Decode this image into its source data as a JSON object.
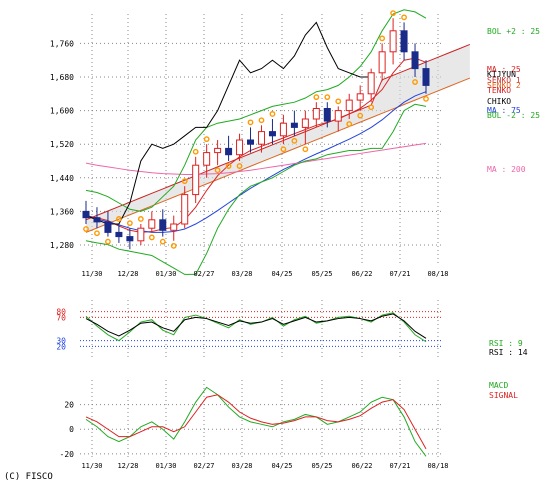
{
  "copyright": "(C) FISCO",
  "chart_data": [
    {
      "type": "candlestick",
      "panel": "price",
      "x_tick_labels": [
        "11/30",
        "12/28",
        "01/30",
        "02/27",
        "03/28",
        "04/25",
        "05/25",
        "06/22",
        "07/21",
        "08/18"
      ],
      "y_tick_labels": [
        "1,760",
        "1,680",
        "1,600",
        "1,520",
        "1,440",
        "1,360",
        "1,280"
      ],
      "ylim": [
        1230,
        1830
      ],
      "grid": true,
      "legend": [
        {
          "label": "BOL +2 : 25",
          "color": "#22aa22"
        },
        {
          "label": "MA : 25",
          "color": "#dd2222"
        },
        {
          "label": "KIJYUN",
          "color": "#000000"
        },
        {
          "label": "SENKO 1",
          "color": "#cc3333"
        },
        {
          "label": "SENKO 2",
          "color": "#dd6622"
        },
        {
          "label": "TENKO",
          "color": "#dd2222"
        },
        {
          "label": "CHIKO",
          "color": "#000000"
        },
        {
          "label": "MA : 75",
          "color": "#2244dd"
        },
        {
          "label": "BOL -2 : 25",
          "color": "#22aa22"
        },
        {
          "label": "MA : 200",
          "color": "#ee66aa"
        },
        {
          "label": "PSAR",
          "color": "#ff9900"
        }
      ],
      "colors": {
        "up": "#dd2222",
        "down": "#1a2a88",
        "bollinger": "#22aa22",
        "ma25": "#dd2222",
        "ma75": "#2244dd",
        "ma200": "#ee66aa",
        "chiko": "#000000",
        "psar": "#ff9900",
        "cloud_line": "#cc2222"
      },
      "ohlc_weekly": [
        [
          1360,
          1385,
          1330,
          1345
        ],
        [
          1345,
          1370,
          1320,
          1335
        ],
        [
          1335,
          1360,
          1300,
          1310
        ],
        [
          1310,
          1330,
          1285,
          1300
        ],
        [
          1300,
          1320,
          1270,
          1290
        ],
        [
          1290,
          1330,
          1280,
          1320
        ],
        [
          1320,
          1360,
          1310,
          1340
        ],
        [
          1340,
          1365,
          1300,
          1315
        ],
        [
          1315,
          1350,
          1290,
          1330
        ],
        [
          1330,
          1420,
          1320,
          1400
        ],
        [
          1400,
          1490,
          1380,
          1470
        ],
        [
          1470,
          1520,
          1440,
          1500
        ],
        [
          1500,
          1530,
          1470,
          1510
        ],
        [
          1510,
          1540,
          1480,
          1495
        ],
        [
          1495,
          1545,
          1480,
          1530
        ],
        [
          1530,
          1560,
          1500,
          1520
        ],
        [
          1520,
          1565,
          1500,
          1550
        ],
        [
          1550,
          1580,
          1520,
          1540
        ],
        [
          1540,
          1590,
          1520,
          1570
        ],
        [
          1570,
          1600,
          1540,
          1560
        ],
        [
          1560,
          1600,
          1520,
          1580
        ],
        [
          1580,
          1620,
          1560,
          1605
        ],
        [
          1605,
          1620,
          1560,
          1575
        ],
        [
          1575,
          1610,
          1550,
          1600
        ],
        [
          1600,
          1640,
          1580,
          1625
        ],
        [
          1625,
          1660,
          1600,
          1640
        ],
        [
          1640,
          1700,
          1620,
          1690
        ],
        [
          1690,
          1760,
          1670,
          1740
        ],
        [
          1740,
          1820,
          1710,
          1790
        ],
        [
          1790,
          1810,
          1720,
          1740
        ],
        [
          1740,
          1760,
          1680,
          1700
        ],
        [
          1700,
          1720,
          1640,
          1660
        ]
      ],
      "series": [
        {
          "name": "MA : 25",
          "values": [
            1350,
            1345,
            1338,
            1325,
            1315,
            1310,
            1312,
            1318,
            1322,
            1340,
            1370,
            1410,
            1445,
            1470,
            1490,
            1505,
            1515,
            1525,
            1535,
            1545,
            1555,
            1565,
            1572,
            1580,
            1592,
            1605,
            1625,
            1650,
            1690,
            1720,
            1725,
            1715
          ]
        },
        {
          "name": "MA : 75",
          "values": [
            1350,
            1342,
            1335,
            1328,
            1320,
            1314,
            1310,
            1310,
            1312,
            1318,
            1330,
            1345,
            1362,
            1380,
            1398,
            1415,
            1430,
            1445,
            1460,
            1472,
            1485,
            1497,
            1508,
            1520,
            1532,
            1545,
            1560,
            1578,
            1600,
            1620,
            1635,
            1645
          ]
        },
        {
          "name": "MA : 200",
          "values": [
            1475,
            1470,
            1466,
            1462,
            1458,
            1455,
            1452,
            1450,
            1449,
            1448,
            1448,
            1449,
            1450,
            1452,
            1455,
            1458,
            1462,
            1466,
            1470,
            1474,
            1478,
            1482,
            1486,
            1490,
            1494,
            1498,
            1502,
            1506,
            1510,
            1514,
            1518,
            1522
          ]
        },
        {
          "name": "BOL +2 : 25",
          "values": [
            1410,
            1405,
            1395,
            1380,
            1365,
            1360,
            1370,
            1395,
            1420,
            1470,
            1530,
            1560,
            1570,
            1575,
            1580,
            1590,
            1600,
            1610,
            1615,
            1620,
            1630,
            1645,
            1650,
            1660,
            1680,
            1705,
            1740,
            1790,
            1830,
            1840,
            1835,
            1820
          ]
        },
        {
          "name": "BOL -2 : 25",
          "values": [
            1290,
            1285,
            1281,
            1270,
            1265,
            1260,
            1255,
            1240,
            1225,
            1210,
            1210,
            1260,
            1320,
            1365,
            1400,
            1420,
            1430,
            1440,
            1455,
            1470,
            1480,
            1485,
            1495,
            1500,
            1505,
            1505,
            1510,
            1510,
            1550,
            1600,
            1615,
            1610
          ]
        },
        {
          "name": "CHIKO",
          "values": [
            1350,
            1340,
            1330,
            1330,
            1380,
            1480,
            1520,
            1510,
            1520,
            1540,
            1560,
            1560,
            1600,
            1660,
            1720,
            1690,
            1700,
            1720,
            1700,
            1730,
            1780,
            1810,
            1750,
            1700,
            1690,
            1680,
            1680,
            null,
            null,
            null,
            null,
            null
          ]
        }
      ]
    },
    {
      "type": "line",
      "panel": "rsi",
      "y_tick_labels": [
        "80",
        "70",
        "30",
        "20"
      ],
      "ylim": [
        0,
        100
      ],
      "grid": true,
      "legend": [
        {
          "label": "RSI : 9",
          "color": "#22aa22"
        },
        {
          "label": "RSI : 14",
          "color": "#000000"
        }
      ],
      "series": [
        {
          "name": "RSI : 9",
          "values": [
            72,
            55,
            40,
            30,
            45,
            62,
            66,
            48,
            40,
            70,
            74,
            68,
            60,
            52,
            66,
            58,
            62,
            70,
            55,
            66,
            72,
            60,
            64,
            70,
            72,
            68,
            62,
            74,
            78,
            62,
            40,
            28
          ]
        },
        {
          "name": "RSI : 14",
          "values": [
            68,
            58,
            46,
            38,
            48,
            60,
            62,
            52,
            46,
            66,
            70,
            68,
            62,
            56,
            64,
            60,
            62,
            68,
            58,
            64,
            70,
            62,
            64,
            68,
            70,
            68,
            64,
            72,
            76,
            64,
            46,
            34
          ]
        }
      ]
    },
    {
      "type": "line",
      "panel": "macd",
      "y_tick_labels": [
        "20",
        "0",
        "-20"
      ],
      "ylim": [
        -25,
        40
      ],
      "grid": true,
      "legend": [
        {
          "label": "MACD",
          "color": "#22aa22"
        },
        {
          "label": "SIGNAL",
          "color": "#dd2222"
        }
      ],
      "series": [
        {
          "name": "MACD",
          "values": [
            8,
            2,
            -6,
            -10,
            -6,
            2,
            6,
            0,
            -8,
            6,
            22,
            34,
            28,
            18,
            10,
            6,
            4,
            2,
            6,
            8,
            12,
            10,
            4,
            6,
            10,
            14,
            22,
            26,
            24,
            10,
            -10,
            -22
          ]
        },
        {
          "name": "SIGNAL",
          "values": [
            10,
            6,
            0,
            -6,
            -6,
            -2,
            2,
            2,
            -2,
            2,
            14,
            26,
            28,
            22,
            14,
            9,
            6,
            4,
            5,
            7,
            10,
            10,
            7,
            6,
            8,
            11,
            17,
            22,
            24,
            16,
            0,
            -16
          ]
        }
      ]
    }
  ]
}
